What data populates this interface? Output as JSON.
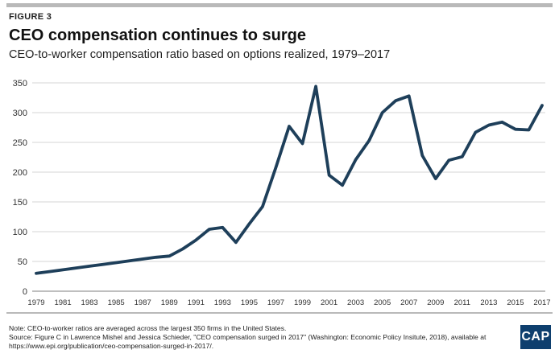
{
  "figure": {
    "label": "FIGURE 3",
    "title": "CEO compensation continues to surge",
    "subtitle": "CEO-to-worker compensation ratio based on options realized, 1979–2017"
  },
  "colors": {
    "line": "#1e3f5a",
    "rule": "#b9b9b9",
    "logo_bg": "#0e3f6e"
  },
  "chart_data": {
    "type": "line",
    "title": "CEO compensation continues to surge",
    "subtitle": "CEO-to-worker compensation ratio based on options realized, 1979–2017",
    "xlabel": "",
    "ylabel": "",
    "ylim": [
      0,
      350
    ],
    "xlim": [
      1979,
      2017
    ],
    "yticks": [
      0,
      50,
      100,
      150,
      200,
      250,
      300,
      350
    ],
    "xticks": [
      "1979",
      "1981",
      "1983",
      "1985",
      "1987",
      "1989",
      "1991",
      "1993",
      "1995",
      "1997",
      "1999",
      "2001",
      "2003",
      "2005",
      "2007",
      "2009",
      "2011",
      "2013",
      "2015",
      "2017"
    ],
    "grid": "horizontal",
    "legend": "none",
    "series": [
      {
        "x": [
          1979,
          1980,
          1981,
          1982,
          1983,
          1984,
          1985,
          1986,
          1987,
          1988,
          1989,
          1990,
          1991,
          1992,
          1993,
          1994,
          1995,
          1996,
          1997,
          1998,
          1999,
          2000,
          2001,
          2002,
          2003,
          2004,
          2005,
          2006,
          2007,
          2008,
          2009,
          2010,
          2011,
          2012,
          2013,
          2014,
          2015,
          2016,
          2017
        ],
        "values": [
          30,
          33,
          36,
          39,
          42,
          45,
          48,
          51,
          54,
          57,
          59,
          71,
          86,
          104,
          107,
          82,
          113,
          142,
          208,
          277,
          248,
          344,
          195,
          178,
          221,
          253,
          300,
          320,
          328,
          228,
          189,
          220,
          226,
          267,
          279,
          284,
          272,
          271,
          312
        ]
      }
    ]
  },
  "notes": {
    "note": "Note: CEO-to-worker ratios are averaged across the largest 350 firms in the United States.",
    "source": "Source: Figure C in Lawrence Mishel and Jessica Schieder, \"CEO compensation surged in 2017\" (Washington: Economic Policy Insitute, 2018), available at https://www.epi.org/publication/ceo-compensation-surged-in-2017/."
  },
  "logo": {
    "text": "CAP"
  }
}
